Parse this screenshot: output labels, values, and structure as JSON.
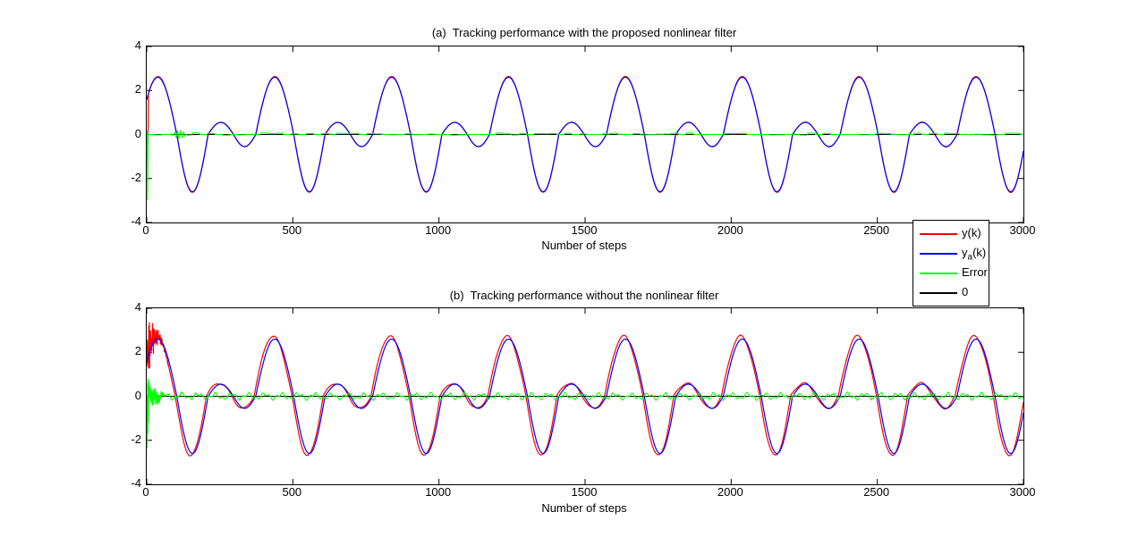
{
  "figure": {
    "background": "#ffffff"
  },
  "legend": {
    "position": "between-plots-right",
    "entries": [
      {
        "pre": "y(k)",
        "sub": "",
        "post": "",
        "color": "#ff0000"
      },
      {
        "pre": "y",
        "sub": "a",
        "post": "(k)",
        "color": "#0000ff"
      },
      {
        "pre": "Error",
        "sub": "",
        "post": "",
        "color": "#00ff00"
      },
      {
        "pre": "0",
        "sub": "",
        "post": "",
        "color": "#000000"
      }
    ]
  },
  "chart_data": [
    {
      "type": "line",
      "title": "(a)  Tracking performance with the proposed nonlinear filter",
      "xlabel": "Number of steps",
      "xlim": [
        0,
        3000
      ],
      "ylim": [
        -4,
        4
      ],
      "xticks": [
        0,
        500,
        1000,
        1500,
        2000,
        2500,
        3000
      ],
      "yticks": [
        4,
        2,
        0,
        -2,
        -4
      ],
      "grid": false,
      "reference_wave": {
        "period": 400,
        "zero_crossings_one_period": [
          -27,
          103,
          210,
          297,
          373
        ],
        "segment_peaks": [
          2.6,
          -2.6,
          0.55,
          -0.55
        ],
        "big_peak_value": 2.6,
        "small_peak_value": 0.55
      },
      "series": [
        {
          "name": "y(k)",
          "color": "#ff0000",
          "role": "tracked-output",
          "seed": 11,
          "prefix_points": [
            [
              0,
              0
            ],
            [
              4,
              0.02
            ],
            [
              5,
              0.3
            ]
          ],
          "from_step": 6,
          "scale": 1.012,
          "lead": 0,
          "offset": 0,
          "noise": 0.008,
          "burst": null
        },
        {
          "name": "ya(k)",
          "color": "#0000ff",
          "role": "reference",
          "seed": 1
        },
        {
          "name": "Error",
          "color": "#00ff00",
          "role": "error",
          "seed": 7,
          "prefix_points": [
            [
              0,
              0
            ],
            [
              1,
              0.1
            ],
            [
              2,
              0.12
            ],
            [
              3,
              -3.0
            ],
            [
              4,
              -1.5
            ],
            [
              5,
              -0.15
            ]
          ],
          "from_step": 6,
          "band": {
            "amplitude": 0.07,
            "hold_steps": 26
          },
          "bump": {
            "center": 112,
            "width": 20,
            "amp": 0.18
          },
          "steady": null,
          "burst": null
        },
        {
          "name": "0",
          "color": "#000000",
          "role": "zero-line",
          "value": 0
        }
      ]
    },
    {
      "type": "line",
      "title": "(b)  Tracking performance without the nonlinear filter",
      "xlabel": "Number of steps",
      "xlim": [
        0,
        3000
      ],
      "ylim": [
        -4,
        4
      ],
      "xticks": [
        0,
        500,
        1000,
        1500,
        2000,
        2500,
        3000
      ],
      "yticks": [
        4,
        2,
        0,
        -2,
        -4
      ],
      "grid": false,
      "reference_wave": {
        "period": 400,
        "zero_crossings_one_period": [
          -27,
          103,
          210,
          297,
          373
        ],
        "segment_peaks": [
          2.6,
          -2.6,
          0.55,
          -0.55
        ],
        "big_peak_value": 2.6,
        "small_peak_value": 0.55
      },
      "series": [
        {
          "name": "y(k)",
          "color": "#ff0000",
          "role": "tracked-output",
          "seed": 23,
          "prefix_points": [
            [
              0,
              1.35
            ]
          ],
          "from_step": 1,
          "scale": 1.045,
          "lead": 6,
          "offset": 0.02,
          "noise": 0.04,
          "burst": {
            "until": 75,
            "amp": 1.25,
            "decay": 24,
            "max_value": 3.45
          }
        },
        {
          "name": "ya(k)",
          "color": "#0000ff",
          "role": "reference",
          "seed": 1
        },
        {
          "name": "Error",
          "color": "#00ff00",
          "role": "error",
          "seed": 41,
          "prefix_points": [
            [
              0,
              0
            ],
            [
              1,
              -0.4
            ],
            [
              2,
              -2.35
            ],
            [
              3,
              0.6
            ],
            [
              4,
              -1.7
            ],
            [
              5,
              0.8
            ],
            [
              6,
              -1.2
            ]
          ],
          "from_step": 7,
          "band": null,
          "bump": null,
          "burst": {
            "until": 60,
            "amp": 1.15,
            "decay": 20,
            "min_value": -2.4
          },
          "steady": {
            "a1": 0.1,
            "p1": 57,
            "a2": 0.07,
            "p2": 23,
            "noise": 0.05
          }
        },
        {
          "name": "0",
          "color": "#000000",
          "role": "zero-line",
          "value": 0
        }
      ]
    }
  ]
}
